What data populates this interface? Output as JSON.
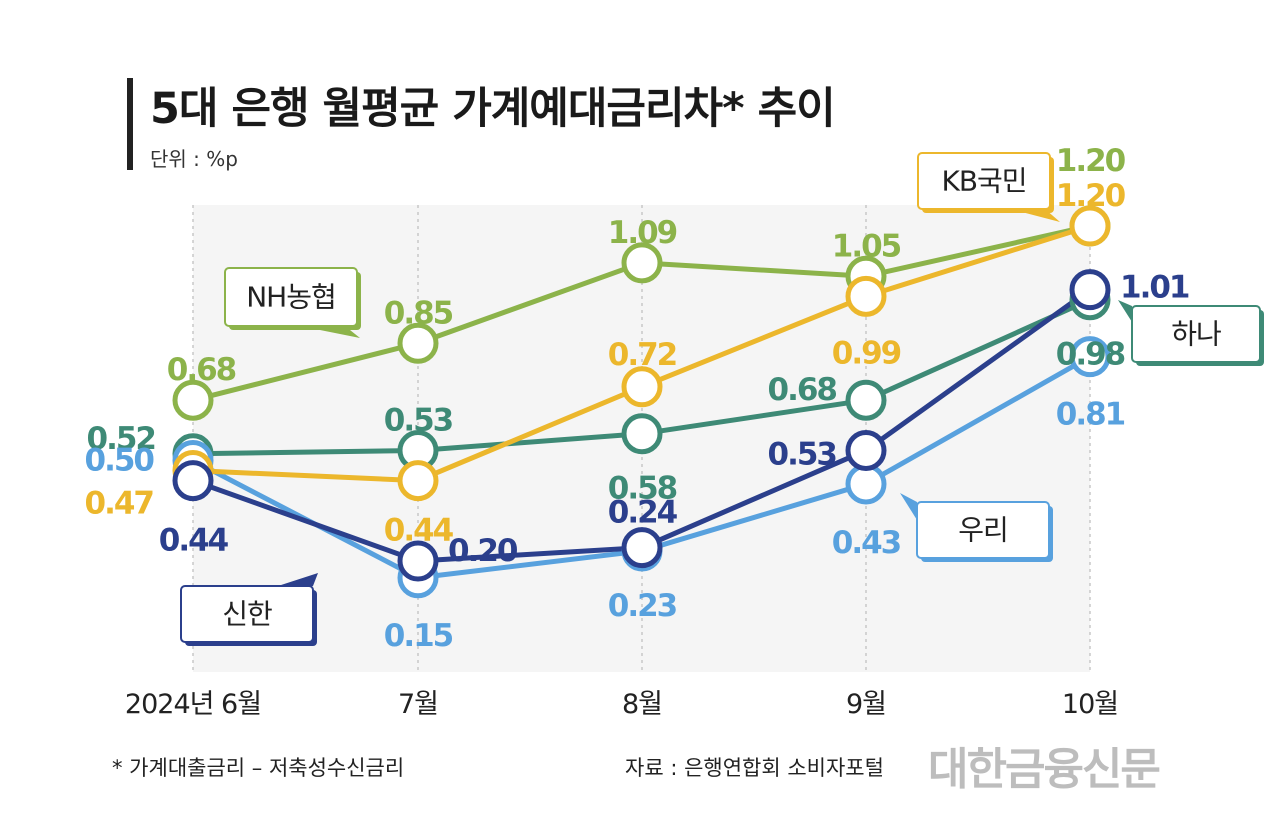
{
  "header": {
    "title": "5대 은행 월평균 가계예대금리차* 추이",
    "unit": "단위 : %p"
  },
  "footer": {
    "note": "* 가계대출금리 – 저축성수신금리",
    "source": "자료 : 은행연합회 소비자포털",
    "brand": "대한금융신문"
  },
  "colors": {
    "NH농협": "#8cb34a",
    "KB국민": "#ecb72c",
    "하나": "#3e8a76",
    "신한": "#2b3f8c",
    "우리": "#58a1de"
  },
  "chart_data": {
    "type": "line",
    "title": "5대 은행 월평균 가계예대금리차* 추이",
    "ylabel": "단위 : %p",
    "xlabel": "",
    "categories": [
      "2024년 6월",
      "7월",
      "8월",
      "9월",
      "10월"
    ],
    "ylim": [
      0.0,
      1.25
    ],
    "grid": false,
    "series": [
      {
        "name": "NH농협",
        "values": [
          0.68,
          0.85,
          1.09,
          1.05,
          1.2
        ],
        "labels": [
          "0.68",
          "0.85",
          "1.09",
          "1.05",
          "1.20"
        ]
      },
      {
        "name": "KB국민",
        "values": [
          0.47,
          0.44,
          0.72,
          0.99,
          1.2
        ],
        "labels": [
          "0.47",
          "0.44",
          "0.72",
          "0.99",
          "1.20"
        ]
      },
      {
        "name": "하나",
        "values": [
          0.52,
          0.53,
          0.58,
          0.68,
          0.98
        ],
        "labels": [
          "0.52",
          "0.53",
          "0.58",
          "0.68",
          "0.98"
        ]
      },
      {
        "name": "우리",
        "values": [
          0.5,
          0.15,
          0.23,
          0.43,
          0.81
        ],
        "labels": [
          "0.50",
          "0.15",
          "0.23",
          "0.43",
          "0.81"
        ]
      },
      {
        "name": "신한",
        "values": [
          0.44,
          0.2,
          0.24,
          0.53,
          1.01
        ],
        "labels": [
          "0.44",
          "0.20",
          "0.24",
          "0.53",
          "1.01"
        ]
      }
    ]
  }
}
